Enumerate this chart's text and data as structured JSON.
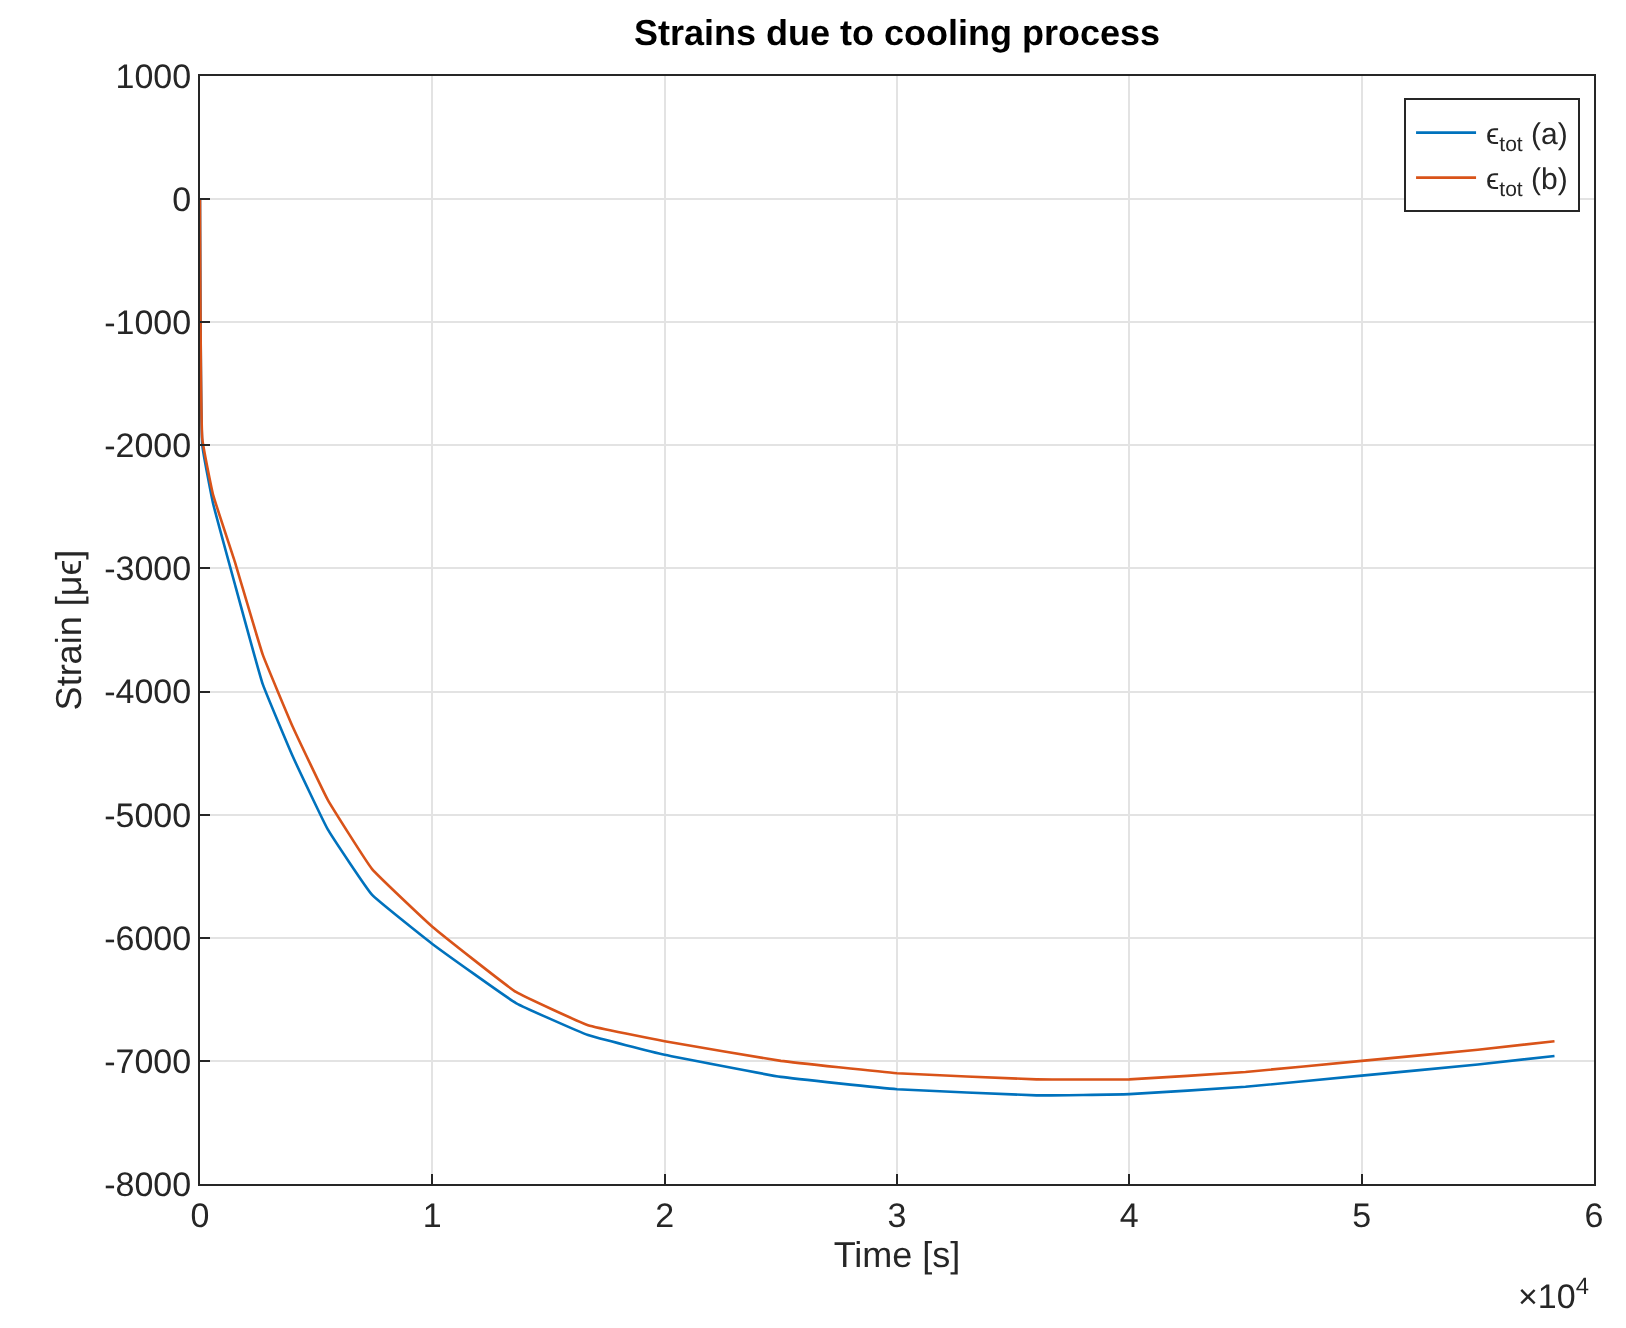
{
  "chart_data": {
    "type": "line",
    "title": "Strains due to cooling process",
    "xlabel": "Time [s]",
    "ylabel": "Strain [μϵ]",
    "xlim": [
      0,
      6
    ],
    "xticks": [
      0,
      1,
      2,
      3,
      4,
      5,
      6
    ],
    "ylim": [
      -8000,
      1000
    ],
    "yticks": [
      -8000,
      -7000,
      -6000,
      -5000,
      -4000,
      -3000,
      -2000,
      -1000,
      0,
      1000
    ],
    "grid": true,
    "legend": "top right",
    "marker": "none",
    "line_style": "solid",
    "annotations": [
      "×10$^{4}$"
    ],
    "series": [
      {
        "name": "ϵ$_{tot}$ (a)",
        "color": "#0072bd",
        "x": [
          0,
          0.01,
          0.056,
          0.149,
          0.27,
          0.4,
          0.55,
          0.74,
          1.0,
          1.36,
          1.67,
          2.0,
          2.5,
          3.0,
          3.6,
          4.0,
          4.5,
          5.0,
          5.5,
          5.83
        ],
        "values": [
          0,
          -2000,
          -2470,
          -3120,
          -3940,
          -4530,
          -5120,
          -5650,
          -6050,
          -6530,
          -6790,
          -6950,
          -7130,
          -7230,
          -7280,
          -7270,
          -7210,
          -7120,
          -7030,
          -6960
        ]
      },
      {
        "name": "ϵ$_{tot}$ (b)",
        "color": "#d95319",
        "x": [
          0,
          0.01,
          0.056,
          0.149,
          0.27,
          0.4,
          0.55,
          0.74,
          1.0,
          1.36,
          1.67,
          2.0,
          2.5,
          3.0,
          3.6,
          4.0,
          4.5,
          5.0,
          5.5,
          5.83
        ],
        "values": [
          0,
          -1950,
          -2400,
          -2940,
          -3700,
          -4290,
          -4880,
          -5440,
          -5910,
          -6440,
          -6710,
          -6840,
          -7000,
          -7100,
          -7150,
          -7150,
          -7090,
          -7000,
          -6910,
          -6840
        ]
      }
    ]
  }
}
